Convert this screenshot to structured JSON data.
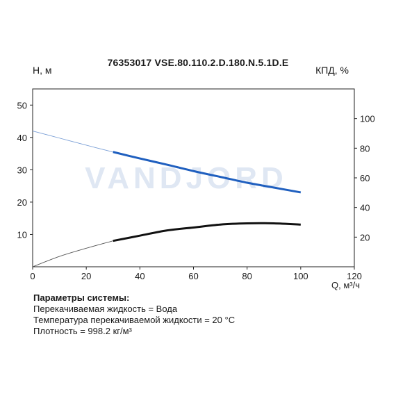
{
  "chart_data": {
    "type": "line",
    "title": "76353017 VSE.80.110.2.D.180.N.5.1D.E",
    "ylabel_left": "H, м",
    "ylabel_right": "КПД, %",
    "xlabel": "Q, м³/ч",
    "xlim": [
      0,
      120
    ],
    "ylim_left": [
      0,
      55
    ],
    "ylim_right": [
      0,
      120
    ],
    "x_ticks": [
      0,
      20,
      40,
      60,
      80,
      100,
      120
    ],
    "y_left_ticks": [
      10,
      20,
      30,
      40,
      50
    ],
    "y_right_ticks": [
      20,
      40,
      60,
      80,
      100
    ],
    "grid": false,
    "watermark": "VANDJORD",
    "series": [
      {
        "axis": "left",
        "color": "#1f5fbf",
        "style": "solid",
        "x": [
          30,
          40,
          50,
          60,
          70,
          80,
          90,
          100
        ],
        "values": [
          35.5,
          33.5,
          31.6,
          29.6,
          27.8,
          26.0,
          24.5,
          23.0
        ]
      },
      {
        "axis": "left",
        "color": "#7a9fd6",
        "style": "thin",
        "x": [
          0,
          10,
          20,
          30
        ],
        "values": [
          42.0,
          39.8,
          37.6,
          35.5
        ]
      },
      {
        "axis": "right",
        "color": "#111111",
        "style": "solid",
        "x": [
          30,
          40,
          50,
          60,
          70,
          80,
          90,
          100
        ],
        "values": [
          17.5,
          21.0,
          24.5,
          26.5,
          28.5,
          29.3,
          29.3,
          28.5
        ]
      },
      {
        "axis": "right",
        "color": "#555555",
        "style": "thin",
        "x": [
          0,
          10,
          20,
          30
        ],
        "values": [
          0,
          7,
          12.5,
          17.5
        ]
      }
    ]
  },
  "params": {
    "header": "Параметры системы:",
    "lines": [
      "Перекачиваемая жидкость = Вода",
      "Температура перекачиваемой жидкости = 20 °C",
      "Плотность = 998.2 кг/м³"
    ]
  }
}
